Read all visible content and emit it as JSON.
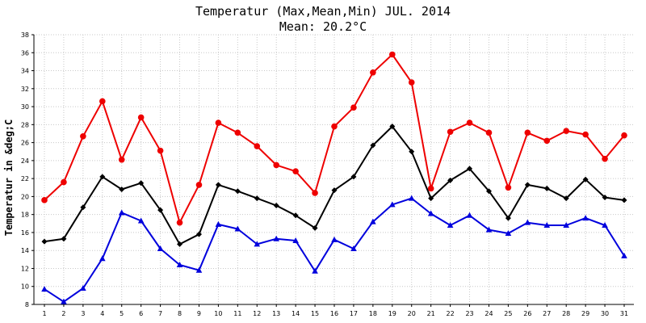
{
  "chart_data": {
    "type": "line",
    "title": "Temperatur (Max,Mean,Min) JUL. 2014",
    "subtitle": "Mean: 20.2°C",
    "ylabel": "Temperatur in &deg;C",
    "xlabel": "",
    "ylim": [
      8,
      38
    ],
    "y_ticks": [
      8,
      10,
      12,
      14,
      16,
      18,
      20,
      22,
      24,
      26,
      28,
      30,
      32,
      34,
      36,
      38
    ],
    "x": [
      1,
      2,
      3,
      4,
      5,
      6,
      7,
      8,
      9,
      10,
      11,
      12,
      13,
      14,
      15,
      16,
      17,
      18,
      19,
      20,
      21,
      22,
      23,
      24,
      25,
      26,
      27,
      28,
      29,
      30,
      31
    ],
    "grid": true,
    "series": [
      {
        "color": "#ee0000",
        "marker": "circle",
        "values": [
          19.6,
          21.6,
          26.7,
          30.6,
          24.1,
          28.8,
          25.1,
          17.1,
          21.3,
          28.2,
          27.1,
          25.6,
          23.5,
          22.8,
          20.4,
          27.8,
          29.9,
          33.8,
          35.8,
          32.7,
          20.9,
          27.2,
          28.2,
          27.1,
          21.0,
          27.1,
          26.2,
          27.3,
          26.9,
          24.2,
          26.8
        ]
      },
      {
        "color": "#000000",
        "marker": "diamond",
        "values": [
          15.0,
          15.3,
          18.8,
          22.2,
          20.8,
          21.5,
          18.5,
          14.7,
          15.8,
          21.3,
          20.6,
          19.8,
          19.0,
          17.9,
          16.5,
          20.7,
          22.2,
          25.7,
          27.8,
          25.0,
          19.8,
          21.8,
          23.1,
          20.6,
          17.6,
          21.3,
          20.9,
          19.8,
          21.9,
          19.9,
          19.6
        ]
      },
      {
        "color": "#0000dd",
        "marker": "triangle",
        "values": [
          9.7,
          8.3,
          9.8,
          13.1,
          18.2,
          17.3,
          14.2,
          12.4,
          11.8,
          16.9,
          16.4,
          14.7,
          15.3,
          15.1,
          11.7,
          15.2,
          14.2,
          17.2,
          19.1,
          19.8,
          18.1,
          16.8,
          17.9,
          16.3,
          15.9,
          17.1,
          16.8,
          16.8,
          17.6,
          16.8,
          13.4
        ]
      }
    ]
  }
}
